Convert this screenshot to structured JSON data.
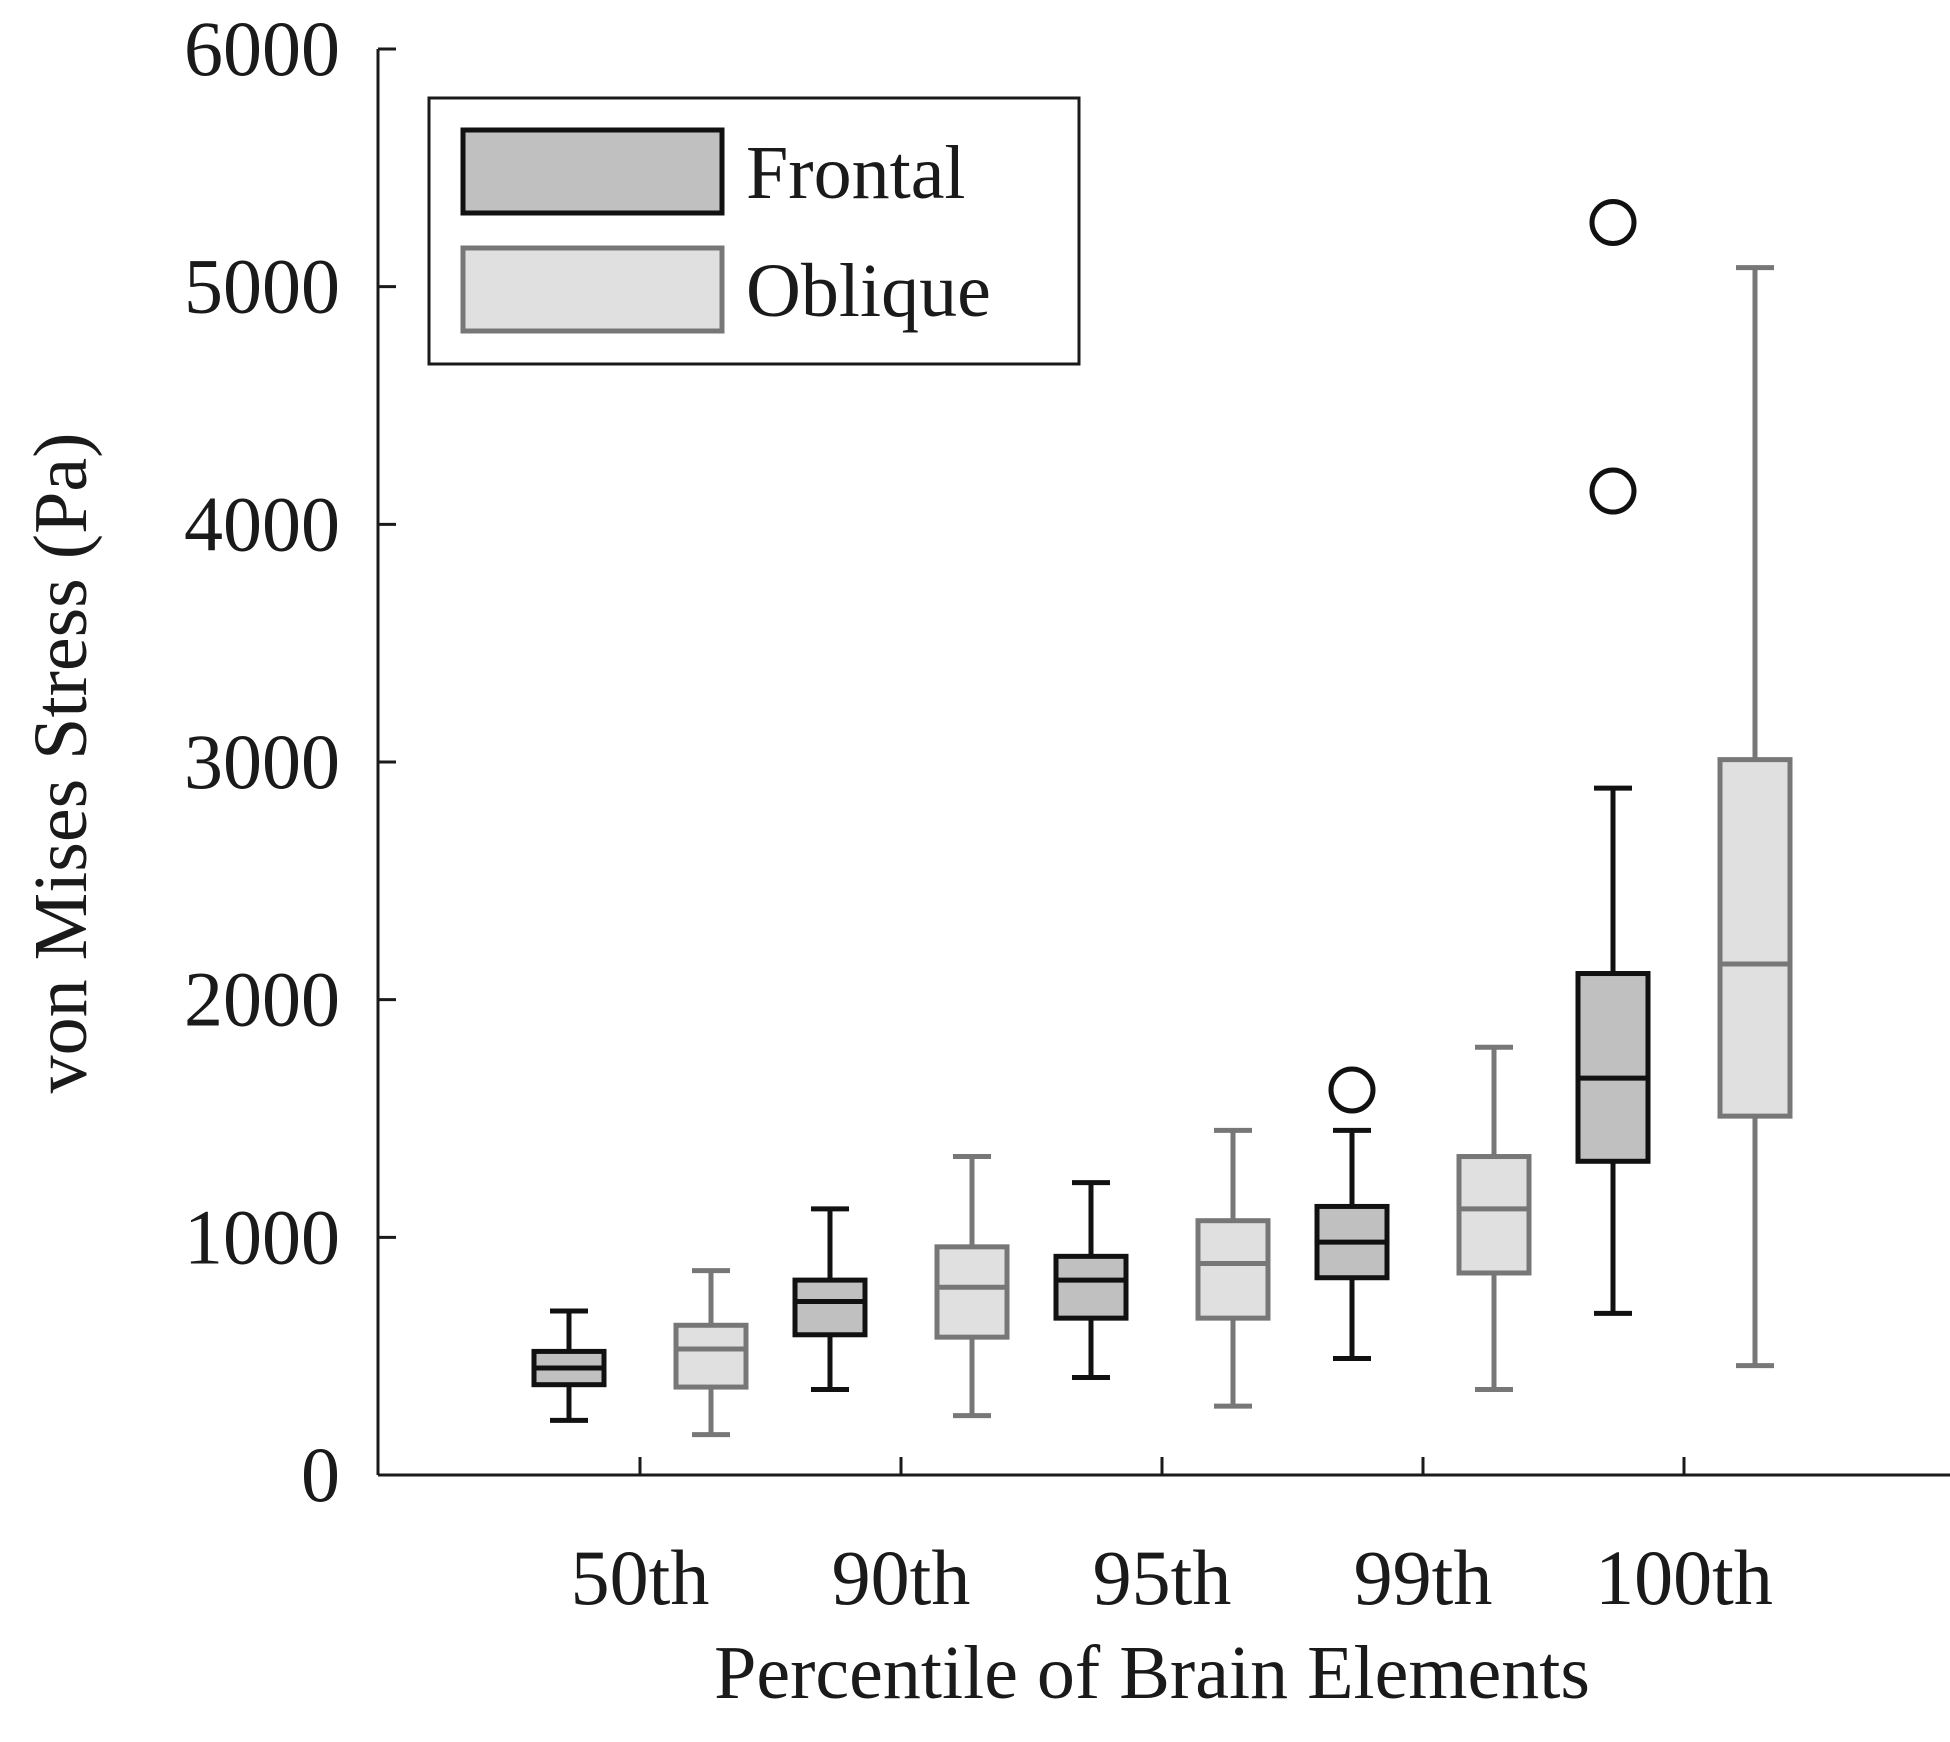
{
  "chart_data": {
    "type": "box",
    "xlabel": "Percentile of Brain Elements",
    "ylabel": "von Mises Stress (Pa)",
    "ylim": [
      0,
      6000
    ],
    "yticks": [
      "0",
      "1000",
      "2000",
      "3000",
      "4000",
      "5000",
      "6000"
    ],
    "categories": [
      "50th",
      "90th",
      "95th",
      "99th",
      "100th"
    ],
    "grid": false,
    "legend_position": "top-left",
    "series": [
      {
        "name": "Frontal",
        "fill": "#c0c0c0",
        "stroke": "#111111",
        "boxes": [
          {
            "category": "50th",
            "min": 230,
            "q1": 380,
            "median": 450,
            "q3": 520,
            "max": 690,
            "outliers": []
          },
          {
            "category": "90th",
            "min": 360,
            "q1": 590,
            "median": 730,
            "q3": 820,
            "max": 1120,
            "outliers": []
          },
          {
            "category": "95th",
            "min": 410,
            "q1": 660,
            "median": 820,
            "q3": 920,
            "max": 1230,
            "outliers": []
          },
          {
            "category": "99th",
            "min": 490,
            "q1": 830,
            "median": 980,
            "q3": 1130,
            "max": 1450,
            "outliers": [
              1620
            ]
          },
          {
            "category": "100th",
            "min": 680,
            "q1": 1320,
            "median": 1670,
            "q3": 2110,
            "max": 2890,
            "outliers": [
              4140,
              5270
            ]
          }
        ]
      },
      {
        "name": "Oblique",
        "fill": "#e0e0e0",
        "stroke": "#777777",
        "boxes": [
          {
            "category": "50th",
            "min": 170,
            "q1": 370,
            "median": 530,
            "q3": 630,
            "max": 860,
            "outliers": []
          },
          {
            "category": "90th",
            "min": 250,
            "q1": 580,
            "median": 790,
            "q3": 960,
            "max": 1340,
            "outliers": []
          },
          {
            "category": "95th",
            "min": 290,
            "q1": 660,
            "median": 890,
            "q3": 1070,
            "max": 1450,
            "outliers": []
          },
          {
            "category": "99th",
            "min": 360,
            "q1": 850,
            "median": 1120,
            "q3": 1340,
            "max": 1800,
            "outliers": []
          },
          {
            "category": "100th",
            "min": 460,
            "q1": 1510,
            "median": 2150,
            "q3": 3010,
            "max": 5080,
            "outliers": []
          }
        ]
      }
    ]
  }
}
